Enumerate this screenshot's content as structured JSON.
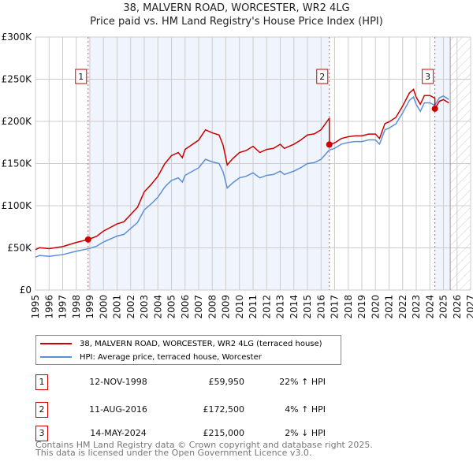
{
  "chart_data": {
    "type": "line",
    "title": "38, MALVERN ROAD, WORCESTER, WR2 4LG",
    "subtitle": "Price paid vs. HM Land Registry's House Price Index (HPI)",
    "xlim": [
      1995,
      2027
    ],
    "ylim": [
      0,
      300000
    ],
    "y_ticks": [
      {
        "v": 0,
        "label": "£0"
      },
      {
        "v": 50000,
        "label": "£50K"
      },
      {
        "v": 100000,
        "label": "£100K"
      },
      {
        "v": 150000,
        "label": "£150K"
      },
      {
        "v": 200000,
        "label": "£200K"
      },
      {
        "v": 250000,
        "label": "£250K"
      },
      {
        "v": 300000,
        "label": "£300K"
      }
    ],
    "x_ticks": [
      "1995",
      "1996",
      "1997",
      "1998",
      "1999",
      "2000",
      "2001",
      "2002",
      "2003",
      "2004",
      "2005",
      "2006",
      "2007",
      "2008",
      "2009",
      "2010",
      "2011",
      "2012",
      "2013",
      "2014",
      "2015",
      "2016",
      "2017",
      "2018",
      "2019",
      "2020",
      "2021",
      "2022",
      "2023",
      "2024",
      "2025",
      "2026",
      "2027"
    ],
    "grid": true,
    "hpi_series": {
      "name": "HPI: Average price, terraced house, Worcester",
      "color": "#5b8fd6",
      "x": [
        1995,
        1995.3,
        1996,
        1997,
        1998,
        1998.9,
        1999.5,
        2000,
        2001,
        2001.5,
        2002,
        2002.5,
        2003,
        2003.5,
        2004,
        2004.5,
        2005,
        2005.5,
        2005.8,
        2006,
        2007,
        2007.5,
        2008,
        2008.5,
        2008.8,
        2009.1,
        2009.5,
        2010,
        2010.5,
        2011,
        2011.5,
        2012,
        2012.5,
        2013,
        2013.3,
        2014,
        2014.5,
        2015,
        2015.5,
        2016,
        2016.6,
        2017,
        2017.5,
        2018,
        2018.5,
        2019,
        2019.5,
        2020,
        2020.3,
        2020.7,
        2021,
        2021.5,
        2022,
        2022.5,
        2022.8,
        2023,
        2023.3,
        2023.6,
        2024,
        2024.37,
        2024.7,
        2025,
        2025.4
      ],
      "y": [
        39000,
        41000,
        40000,
        42000,
        46000,
        49000,
        52000,
        57000,
        64000,
        66000,
        73000,
        80000,
        95000,
        102000,
        110000,
        122000,
        130000,
        133000,
        128000,
        136000,
        145000,
        155000,
        152000,
        150000,
        140000,
        121000,
        127000,
        133000,
        135000,
        139000,
        133000,
        136000,
        137000,
        141000,
        137000,
        141000,
        145000,
        150000,
        151000,
        155000,
        166000,
        168000,
        173000,
        175000,
        176000,
        176000,
        178000,
        178000,
        173000,
        190000,
        192000,
        197000,
        210000,
        225000,
        229000,
        220000,
        212000,
        222000,
        222000,
        219000,
        228000,
        230000,
        226000
      ]
    },
    "price_series": {
      "name": "38, MALVERN ROAD, WORCESTER, WR2 4LG (terraced house)",
      "color": "#cc0000"
    },
    "sales": [
      {
        "n": "1",
        "x": 1998.87,
        "date": "12-NOV-1998",
        "price": 59950,
        "price_label": "£59,950",
        "hpi": "22% ↑ HPI"
      },
      {
        "n": "2",
        "x": 2016.61,
        "date": "11-AUG-2016",
        "price": 172500,
        "price_label": "£172,500",
        "hpi": "4% ↑ HPI"
      },
      {
        "n": "3",
        "x": 2024.37,
        "date": "14-MAY-2024",
        "price": 215000,
        "price_label": "£215,000",
        "hpi": "2% ↓ HPI"
      }
    ],
    "forecast_from": 2025.5
  },
  "footer": {
    "line1": "Contains HM Land Registry data © Crown copyright and database right 2025.",
    "line2": "This data is licensed under the Open Government Licence v3.0."
  }
}
